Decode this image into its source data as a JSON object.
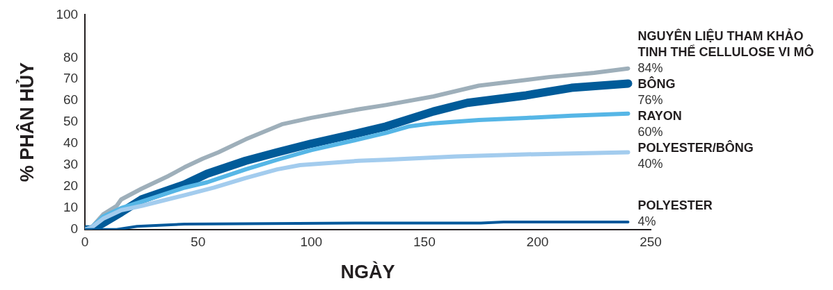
{
  "chart_data": {
    "type": "line",
    "xlabel": "NGÀY",
    "ylabel": "% PHÂN HỦY",
    "xlim": [
      0,
      250
    ],
    "xticks": [
      0,
      50,
      100,
      150,
      200,
      250
    ],
    "ylim": [
      0,
      100
    ],
    "yticks": [
      0,
      10,
      20,
      30,
      40,
      50,
      60,
      70,
      80,
      100
    ],
    "grid": false,
    "legend": false,
    "marker": "none",
    "line_style": "solid",
    "series": [
      {
        "name": "NGUYÊN LIỆU THAM KHẢO TINH THỂ CELLULOSE VI MÔ",
        "color": "#9eafba",
        "x": [
          0,
          3,
          8,
          14,
          16,
          25,
          37,
          44,
          52,
          59,
          71,
          87,
          100,
          121,
          133,
          154,
          174,
          205,
          225,
          240
        ],
        "values": [
          0,
          1,
          7,
          11,
          14,
          19,
          25,
          29,
          33,
          36,
          42,
          49,
          52,
          56,
          58,
          62,
          67,
          71,
          73,
          75
        ]
      },
      {
        "name": "BÔNG",
        "color": "#005b99",
        "x": [
          0,
          3,
          8,
          16,
          25,
          44,
          54,
          71,
          85,
          100,
          121,
          133,
          154,
          169,
          195,
          215,
          240
        ],
        "values": [
          0,
          0,
          3,
          8,
          14,
          21,
          26,
          32,
          36,
          40,
          45,
          48,
          55,
          59,
          62.5,
          66,
          68
        ]
      },
      {
        "name": "RAYON",
        "color": "#56b6e6",
        "x": [
          0,
          3,
          8,
          16,
          25,
          44,
          54,
          71,
          85,
          100,
          121,
          133,
          143,
          154,
          174,
          195,
          215,
          240
        ],
        "values": [
          0,
          1,
          6,
          10,
          13,
          19.5,
          22,
          28,
          32.5,
          37,
          42,
          45,
          48,
          49.5,
          51,
          52,
          53,
          54
        ]
      },
      {
        "name": "POLYESTER/BÔNG",
        "color": "#a3ccee",
        "x": [
          0,
          3,
          8,
          16,
          25,
          44,
          57,
          71,
          85,
          95,
          121,
          133,
          164,
          195,
          240
        ],
        "values": [
          0,
          1,
          5,
          9,
          11,
          16,
          19.5,
          24,
          28,
          30,
          32,
          32.5,
          34,
          35,
          36
        ]
      },
      {
        "name": "POLYESTER",
        "color": "#00589a",
        "x": [
          0,
          14,
          23,
          44,
          120,
          175,
          185,
          240
        ],
        "values": [
          0,
          0,
          1.5,
          2.5,
          3,
          3,
          3.5,
          3.5
        ]
      }
    ],
    "annotations": [
      "84%",
      "76%",
      "60%",
      "40%",
      "4%"
    ]
  }
}
